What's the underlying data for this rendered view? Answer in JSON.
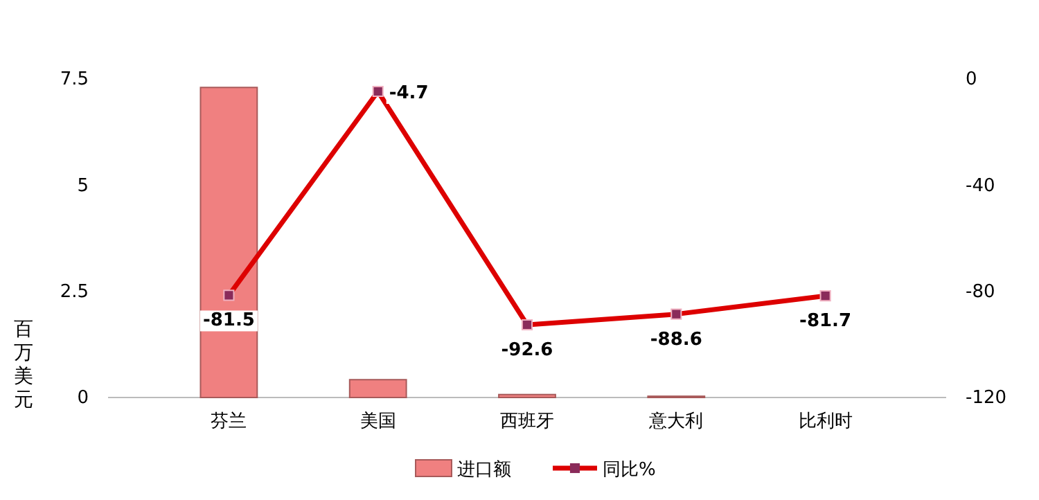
{
  "chart_data": {
    "type": "bar",
    "categories": [
      "芬兰",
      "美国",
      "西班牙",
      "意大利",
      "比利时"
    ],
    "ylabel": "百万美元",
    "ylim": [
      0,
      7.5
    ],
    "yticks": [
      0,
      2.5,
      5,
      7.5
    ],
    "y2lim": [
      -120,
      0
    ],
    "y2ticks": [
      -120,
      -80,
      -40,
      0
    ],
    "series": [
      {
        "name": "进口额",
        "color": "#f08080",
        "values": [
          7.3,
          0.42,
          0.07,
          0.03,
          null
        ]
      },
      {
        "name": "同比%",
        "type": "line",
        "axis": "y2",
        "color": "#dd0000",
        "marker": "square",
        "values": [
          -81.5,
          -4.7,
          -92.6,
          -88.6,
          -81.7
        ],
        "value_labels": [
          "-81.5",
          "-4.7",
          "-92.6",
          "-88.6",
          "-81.7"
        ]
      }
    ],
    "grid": false,
    "legend": "bottom"
  }
}
